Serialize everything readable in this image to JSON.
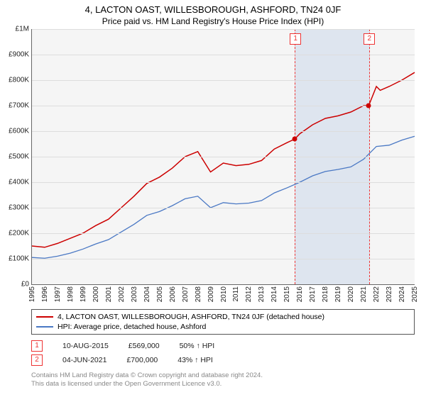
{
  "title": "4, LACTON OAST, WILLESBOROUGH, ASHFORD, TN24 0JF",
  "subtitle": "Price paid vs. HM Land Registry's House Price Index (HPI)",
  "chart": {
    "type": "line",
    "background_color": "#f5f5f5",
    "grid_color": "#dddddd",
    "axis_color": "#666666",
    "ylim": [
      0,
      1000000
    ],
    "ytick_step": 100000,
    "yticks": [
      "£0",
      "£100K",
      "£200K",
      "£300K",
      "£400K",
      "£500K",
      "£600K",
      "£700K",
      "£800K",
      "£900K",
      "£1M"
    ],
    "xlim": [
      1995,
      2025
    ],
    "xticks": [
      1995,
      1996,
      1997,
      1998,
      1999,
      2000,
      2001,
      2002,
      2003,
      2004,
      2005,
      2006,
      2007,
      2008,
      2009,
      2010,
      2011,
      2012,
      2013,
      2014,
      2015,
      2016,
      2017,
      2018,
      2019,
      2020,
      2021,
      2022,
      2023,
      2024,
      2025
    ],
    "series": [
      {
        "name": "4, LACTON OAST, WILLESBOROUGH, ASHFORD, TN24 0JF (detached house)",
        "color": "#cc0000",
        "line_width": 1.5,
        "data": [
          [
            1995,
            150000
          ],
          [
            1996,
            145000
          ],
          [
            1997,
            160000
          ],
          [
            1998,
            180000
          ],
          [
            1999,
            200000
          ],
          [
            2000,
            230000
          ],
          [
            2001,
            255000
          ],
          [
            2002,
            300000
          ],
          [
            2003,
            345000
          ],
          [
            2004,
            395000
          ],
          [
            2005,
            420000
          ],
          [
            2006,
            455000
          ],
          [
            2007,
            500000
          ],
          [
            2008,
            520000
          ],
          [
            2009,
            440000
          ],
          [
            2010,
            475000
          ],
          [
            2011,
            465000
          ],
          [
            2012,
            470000
          ],
          [
            2013,
            485000
          ],
          [
            2014,
            530000
          ],
          [
            2015,
            555000
          ],
          [
            2015.6,
            569000
          ],
          [
            2016,
            590000
          ],
          [
            2017,
            625000
          ],
          [
            2018,
            650000
          ],
          [
            2019,
            660000
          ],
          [
            2020,
            675000
          ],
          [
            2021,
            700000
          ],
          [
            2021.4,
            700000
          ],
          [
            2022,
            775000
          ],
          [
            2022.3,
            760000
          ],
          [
            2023,
            775000
          ],
          [
            2024,
            800000
          ],
          [
            2025,
            830000
          ]
        ]
      },
      {
        "name": "HPI: Average price, detached house, Ashford",
        "color": "#4a78c4",
        "line_width": 1.3,
        "data": [
          [
            1995,
            105000
          ],
          [
            1996,
            102000
          ],
          [
            1997,
            110000
          ],
          [
            1998,
            122000
          ],
          [
            1999,
            138000
          ],
          [
            2000,
            158000
          ],
          [
            2001,
            175000
          ],
          [
            2002,
            205000
          ],
          [
            2003,
            235000
          ],
          [
            2004,
            270000
          ],
          [
            2005,
            285000
          ],
          [
            2006,
            308000
          ],
          [
            2007,
            335000
          ],
          [
            2008,
            345000
          ],
          [
            2009,
            300000
          ],
          [
            2010,
            320000
          ],
          [
            2011,
            315000
          ],
          [
            2012,
            318000
          ],
          [
            2013,
            328000
          ],
          [
            2014,
            358000
          ],
          [
            2015,
            378000
          ],
          [
            2016,
            400000
          ],
          [
            2017,
            425000
          ],
          [
            2018,
            442000
          ],
          [
            2019,
            450000
          ],
          [
            2020,
            460000
          ],
          [
            2021,
            490000
          ],
          [
            2022,
            540000
          ],
          [
            2023,
            545000
          ],
          [
            2024,
            565000
          ],
          [
            2025,
            580000
          ]
        ]
      }
    ],
    "sale_markers": [
      {
        "num": "1",
        "year": 2015.6,
        "price": 569000,
        "color": "#cc0000"
      },
      {
        "num": "2",
        "year": 2021.4,
        "price": 700000,
        "color": "#cc0000"
      }
    ],
    "highlight_band": {
      "start": 2015.6,
      "end": 2021.4,
      "fill": "rgba(180,200,230,0.35)",
      "border": "#e33"
    }
  },
  "legend": {
    "items": [
      {
        "color": "#cc0000",
        "label": "4, LACTON OAST, WILLESBOROUGH, ASHFORD, TN24 0JF (detached house)"
      },
      {
        "color": "#4a78c4",
        "label": "HPI: Average price, detached house, Ashford"
      }
    ]
  },
  "sales": [
    {
      "num": "1",
      "date": "10-AUG-2015",
      "price": "£569,000",
      "pct": "50% ↑ HPI"
    },
    {
      "num": "2",
      "date": "04-JUN-2021",
      "price": "£700,000",
      "pct": "43% ↑ HPI"
    }
  ],
  "footer_line1": "Contains HM Land Registry data © Crown copyright and database right 2024.",
  "footer_line2": "This data is licensed under the Open Government Licence v3.0."
}
